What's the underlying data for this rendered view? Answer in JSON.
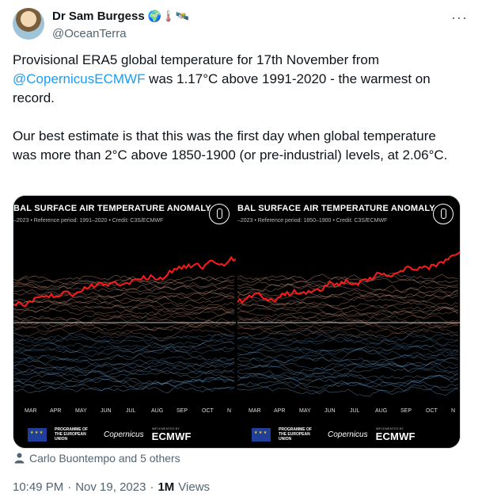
{
  "author": {
    "name": "Dr Sam Burgess",
    "name_emoji": "🌍🌡️🛰️",
    "handle": "@OceanTerra"
  },
  "menu": {
    "more_label": "···"
  },
  "tweet": {
    "para1_before": "Provisional ERA5 global temperature for 17th November from ",
    "para1_mention": "@CopernicusECMWF",
    "para1_after": " was 1.17°C above 1991-2020 - the warmest on record.",
    "para2": "Our best estimate is that this was the first day when global temperature was more than 2°C above 1850-1900 (or pre-industrial) levels, at 2.06°C."
  },
  "media": {
    "left": {
      "title": "BAL SURFACE AIR TEMPERATURE ANOMALY",
      "subtitle": "–2023 • Reference period: 1991–2020 • Credit: C3S/ECMWF"
    },
    "right": {
      "title": "BAL SURFACE AIR TEMPERATURE ANOMALY",
      "subtitle": "–2023 • Reference period: 1850–1900 • Credit: C3S/ECMWF"
    },
    "months": [
      "MAR",
      "APR",
      "MAY",
      "JUN",
      "JUL",
      "AUG",
      "SEP",
      "OCT",
      "N"
    ],
    "footer": {
      "eu_text": "PROGRAMME OF THE EUROPEAN UNION",
      "copernicus": "Copernicus",
      "implemented_by": "IMPLEMENTED BY",
      "ecmwf": "ECMWF"
    },
    "colors": {
      "highlight_line": "#ff1a1a",
      "warm": "#e7a68a",
      "cool": "#6aa6d8"
    }
  },
  "tagged": {
    "text": "Carlo Buontempo and 5 others",
    "icon": "person-icon"
  },
  "meta": {
    "time": "10:49 PM",
    "date": "Nov 19, 2023",
    "views_count": "1M",
    "views_label": "Views"
  }
}
